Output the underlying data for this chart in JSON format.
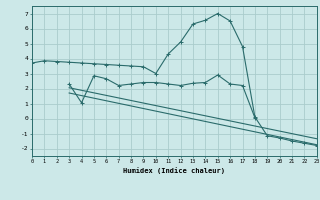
{
  "bg_color": "#cce8e8",
  "grid_color": "#aacccc",
  "line_color": "#2a6b6b",
  "line1_x": [
    0,
    1,
    2,
    3,
    4,
    5,
    6,
    7,
    8,
    9,
    10,
    11,
    12,
    13,
    14,
    15,
    16,
    17,
    18,
    19,
    20,
    21,
    22,
    23
  ],
  "line1_y": [
    3.7,
    3.85,
    3.8,
    3.75,
    3.7,
    3.65,
    3.6,
    3.55,
    3.5,
    3.45,
    3.0,
    4.3,
    5.1,
    6.3,
    6.55,
    7.0,
    6.5,
    4.8,
    0.1,
    -1.15,
    -1.3,
    -1.5,
    -1.65,
    -1.8
  ],
  "line2_x": [
    3,
    4,
    5,
    6,
    7,
    8,
    9,
    10,
    11,
    12,
    13,
    14,
    15,
    16,
    17,
    18
  ],
  "line2_y": [
    2.3,
    1.05,
    2.85,
    2.65,
    2.2,
    2.3,
    2.4,
    2.4,
    2.3,
    2.2,
    2.35,
    2.4,
    2.9,
    2.3,
    2.2,
    0.05
  ],
  "trend1_x": [
    3,
    23
  ],
  "trend1_y": [
    2.05,
    -1.35
  ],
  "trend2_x": [
    3,
    23
  ],
  "trend2_y": [
    1.7,
    -1.75
  ],
  "xlim": [
    0,
    23
  ],
  "ylim": [
    -2.5,
    7.5
  ],
  "yticks": [
    -2,
    -1,
    0,
    1,
    2,
    3,
    4,
    5,
    6,
    7
  ],
  "xticks": [
    0,
    1,
    2,
    3,
    4,
    5,
    6,
    7,
    8,
    9,
    10,
    11,
    12,
    13,
    14,
    15,
    16,
    17,
    18,
    19,
    20,
    21,
    22,
    23
  ],
  "xlabel": "Humidex (Indice chaleur)"
}
